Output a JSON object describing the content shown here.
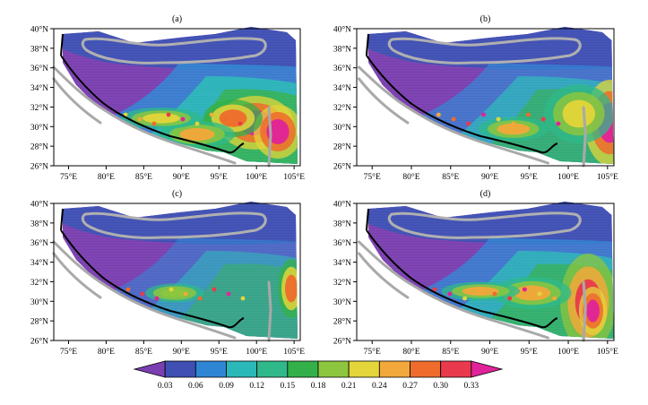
{
  "panels": [
    {
      "label": "(a)",
      "intensity": 1.0
    },
    {
      "label": "(b)",
      "intensity": 0.7
    },
    {
      "label": "(c)",
      "intensity": 0.45
    },
    {
      "label": "(d)",
      "intensity": 0.85
    }
  ],
  "lat_ticks": [
    "40°N",
    "38°N",
    "36°N",
    "34°N",
    "32°N",
    "30°N",
    "28°N",
    "26°N"
  ],
  "lon_ticks": [
    "75°E",
    "80°E",
    "85°E",
    "90°E",
    "95°E",
    "100°E",
    "105°E"
  ],
  "colorbar": {
    "labels": [
      "0.03",
      "0.06",
      "0.09",
      "0.12",
      "0.15",
      "0.18",
      "0.21",
      "0.24",
      "0.27",
      "0.30",
      "0.33"
    ],
    "colors": [
      "#7a3fb0",
      "#3f4fb4",
      "#2f86d4",
      "#2ab8b8",
      "#2fb98a",
      "#34b04a",
      "#8cc63e",
      "#e3d53a",
      "#f2a83a",
      "#ee6b2c",
      "#e83a4c",
      "#e0239a"
    ]
  }
}
